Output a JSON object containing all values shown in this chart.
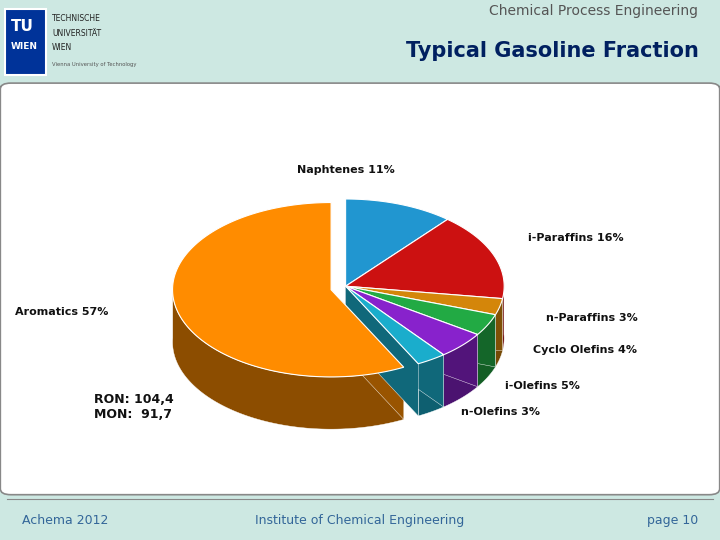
{
  "title_top": "Chemical Process Engineering",
  "title_main": "Typical Gasoline Fraction",
  "slices": [
    {
      "label": "Naphtenes 11%",
      "value": 11,
      "color": "#2196d0"
    },
    {
      "label": "i-Paraffins 16%",
      "value": 16,
      "color": "#cc1111"
    },
    {
      "label": "n-Paraffins 3%",
      "value": 3,
      "color": "#d4860a"
    },
    {
      "label": "Cyclo Olefins 4%",
      "value": 4,
      "color": "#22aa44"
    },
    {
      "label": "i-Olefins 5%",
      "value": 5,
      "color": "#8822cc"
    },
    {
      "label": "n-Olefins 3%",
      "value": 3,
      "color": "#1aadcc"
    },
    {
      "label": "Aromatics 57%",
      "value": 57,
      "color": "#ff8c00"
    }
  ],
  "annotation_ron": "RON: 104,4\nMON:  91,7",
  "footer_left": "Achema 2012",
  "footer_center": "Institute of Chemical Engineering",
  "footer_right": "page 10",
  "bg_color": "#cde8e2",
  "box_bg": "#ffffff",
  "title_top_color": "#555555",
  "title_main_color": "#002060",
  "footer_color": "#336699"
}
